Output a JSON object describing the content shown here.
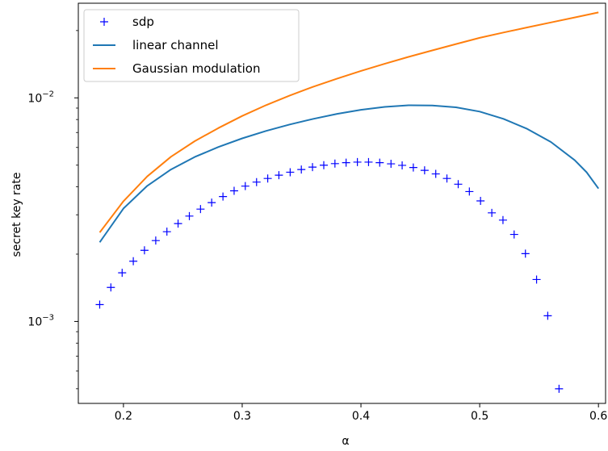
{
  "chart_data": {
    "type": "line",
    "xlabel": "α",
    "ylabel": "secret key rate",
    "xlim": [
      0.162,
      0.606
    ],
    "ylim": [
      0.00043,
      0.0265
    ],
    "yscale": "log",
    "x_ticks": [
      0.2,
      0.3,
      0.4,
      0.5,
      0.6
    ],
    "x_tick_labels": [
      "0.2",
      "0.3",
      "0.4",
      "0.5",
      "0.6"
    ],
    "y_major_ticks": [
      0.001,
      0.01
    ],
    "y_tick_labels": [
      {
        "base": "10",
        "exp": "−3"
      },
      {
        "base": "10",
        "exp": "−2"
      }
    ],
    "grid": false,
    "legend_position": "top-left",
    "series": [
      {
        "name": "sdp",
        "style": "marker",
        "marker": "+",
        "color": "#0000ff",
        "x": [
          0.18,
          0.1894,
          0.1989,
          0.2083,
          0.2177,
          0.2272,
          0.2366,
          0.246,
          0.2555,
          0.2649,
          0.2743,
          0.2838,
          0.2932,
          0.3026,
          0.3121,
          0.3215,
          0.3309,
          0.3404,
          0.3498,
          0.3592,
          0.3687,
          0.3781,
          0.3875,
          0.397,
          0.4064,
          0.4158,
          0.4253,
          0.4347,
          0.4441,
          0.4536,
          0.463,
          0.4724,
          0.4819,
          0.4913,
          0.5007,
          0.5102,
          0.5196,
          0.529,
          0.5385,
          0.5479,
          0.5573,
          0.5668
        ],
        "y": [
          0.00119,
          0.00142,
          0.00165,
          0.00186,
          0.00208,
          0.0023,
          0.00252,
          0.00274,
          0.00296,
          0.00318,
          0.0034,
          0.00362,
          0.00384,
          0.00403,
          0.0042,
          0.00436,
          0.00451,
          0.00465,
          0.00478,
          0.0049,
          0.005,
          0.00508,
          0.00513,
          0.00516,
          0.00516,
          0.00513,
          0.00507,
          0.00499,
          0.00488,
          0.00474,
          0.00457,
          0.00436,
          0.00411,
          0.00381,
          0.00346,
          0.00306,
          0.00284,
          0.00245,
          0.00201,
          0.00154,
          0.00106,
          0.0005
        ]
      },
      {
        "name": "linear channel",
        "style": "line",
        "color": "#1f77b4",
        "x": [
          0.18,
          0.2,
          0.22,
          0.24,
          0.26,
          0.28,
          0.3,
          0.32,
          0.34,
          0.36,
          0.38,
          0.4,
          0.42,
          0.44,
          0.46,
          0.48,
          0.5,
          0.52,
          0.54,
          0.56,
          0.58,
          0.59,
          0.6
        ],
        "y": [
          0.00226,
          0.0032,
          0.00404,
          0.00478,
          0.00544,
          0.00603,
          0.00659,
          0.00711,
          0.0076,
          0.00806,
          0.00848,
          0.00884,
          0.00911,
          0.00926,
          0.00925,
          0.00907,
          0.00868,
          0.00806,
          0.00727,
          0.00635,
          0.00526,
          0.00465,
          0.00393
        ]
      },
      {
        "name": "Gaussian modulation",
        "style": "line",
        "color": "#ff7f0e",
        "x": [
          0.18,
          0.2,
          0.22,
          0.24,
          0.26,
          0.28,
          0.3,
          0.32,
          0.34,
          0.36,
          0.38,
          0.4,
          0.42,
          0.44,
          0.46,
          0.48,
          0.5,
          0.52,
          0.54,
          0.56,
          0.58,
          0.6
        ],
        "y": [
          0.0025,
          0.00345,
          0.00445,
          0.00545,
          0.0064,
          0.00733,
          0.0083,
          0.00927,
          0.01024,
          0.01122,
          0.0122,
          0.0132,
          0.0142,
          0.01525,
          0.0163,
          0.0174,
          0.01855,
          0.0196,
          0.02065,
          0.02175,
          0.0229,
          0.0241
        ]
      }
    ]
  }
}
